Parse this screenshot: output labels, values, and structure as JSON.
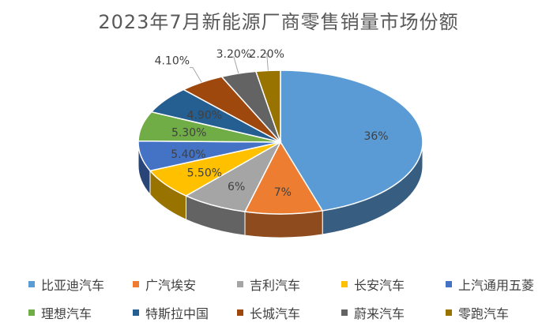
{
  "chart_data": {
    "type": "pie",
    "title": "2023年7月新能源厂商零售销量市场份额",
    "legend_position": "bottom",
    "slices": [
      {
        "name": "比亚迪汽车",
        "value": 36,
        "label": "36%",
        "color": "#5B9BD5"
      },
      {
        "name": "广汽埃安",
        "value": 7,
        "label": "7%",
        "color": "#ED7D31"
      },
      {
        "name": "吉利汽车",
        "value": 6,
        "label": "6%",
        "color": "#A5A5A5"
      },
      {
        "name": "长安汽车",
        "value": 5.5,
        "label": "5.50%",
        "color": "#FFC000"
      },
      {
        "name": "上汽通用五菱",
        "value": 5.4,
        "label": "5.40%",
        "color": "#4472C4"
      },
      {
        "name": "理想汽车",
        "value": 5.3,
        "label": "5.30%",
        "color": "#70AD47"
      },
      {
        "name": "特斯拉中国",
        "value": 4.9,
        "label": "4.90%",
        "color": "#255E91"
      },
      {
        "name": "长城汽车",
        "value": 4.1,
        "label": "4.10%",
        "color": "#9E480E"
      },
      {
        "name": "蔚来汽车",
        "value": 3.2,
        "label": "3.20%",
        "color": "#636363"
      },
      {
        "name": "零跑汽车",
        "value": 2.2,
        "label": "2.20%",
        "color": "#997300"
      }
    ]
  }
}
